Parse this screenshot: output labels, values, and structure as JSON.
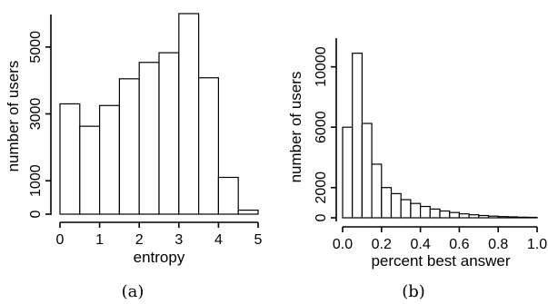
{
  "chart_data": [
    {
      "type": "bar",
      "caption": "(a)",
      "xlabel": "entropy",
      "ylabel": "number of users",
      "xlim": [
        0,
        5
      ],
      "ylim": [
        0,
        6000
      ],
      "x_ticks": [
        "0",
        "1",
        "2",
        "3",
        "4",
        "5"
      ],
      "y_ticks": [
        "0",
        "1000",
        "3000",
        "5000"
      ],
      "bins": [
        [
          0,
          0.5
        ],
        [
          0.5,
          1
        ],
        [
          1,
          1.5
        ],
        [
          1.5,
          2
        ],
        [
          2,
          2.5
        ],
        [
          2.5,
          3
        ],
        [
          3,
          3.5
        ],
        [
          3.5,
          4
        ],
        [
          4,
          4.5
        ],
        [
          4.5,
          5
        ]
      ],
      "values": [
        3300,
        2630,
        3250,
        4050,
        4540,
        4830,
        6000,
        4080,
        1100,
        120
      ]
    },
    {
      "type": "bar",
      "caption": "(b)",
      "xlabel": "percent best answer",
      "ylabel": "number of users",
      "xlim": [
        0,
        1
      ],
      "ylim": [
        0,
        11000
      ],
      "x_ticks": [
        "0.0",
        "0.2",
        "0.4",
        "0.6",
        "0.8",
        "1.0"
      ],
      "y_ticks": [
        "0",
        "2000",
        "6000",
        "10000"
      ],
      "bins": [
        [
          0,
          0.05
        ],
        [
          0.05,
          0.1
        ],
        [
          0.1,
          0.15
        ],
        [
          0.15,
          0.2
        ],
        [
          0.2,
          0.25
        ],
        [
          0.25,
          0.3
        ],
        [
          0.3,
          0.35
        ],
        [
          0.35,
          0.4
        ],
        [
          0.4,
          0.45
        ],
        [
          0.45,
          0.5
        ],
        [
          0.5,
          0.55
        ],
        [
          0.55,
          0.6
        ],
        [
          0.6,
          0.65
        ],
        [
          0.65,
          0.7
        ],
        [
          0.7,
          0.75
        ],
        [
          0.75,
          0.8
        ],
        [
          0.8,
          0.85
        ],
        [
          0.85,
          0.9
        ],
        [
          0.9,
          0.95
        ],
        [
          0.95,
          1.0
        ]
      ],
      "values": [
        6000,
        10900,
        6250,
        3550,
        2000,
        1600,
        1200,
        950,
        750,
        580,
        450,
        350,
        260,
        200,
        150,
        110,
        80,
        60,
        40,
        30
      ]
    }
  ]
}
